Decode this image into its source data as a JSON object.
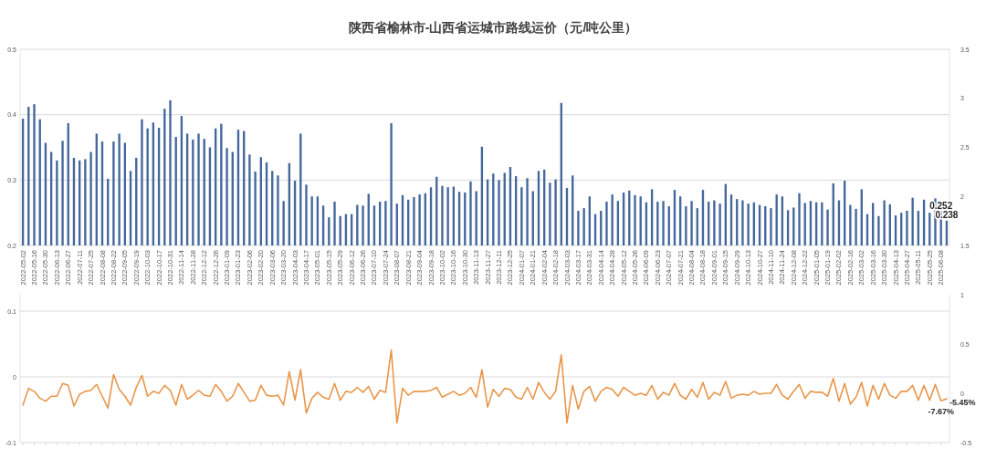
{
  "chart_data": [
    {
      "type": "bar",
      "title": "陕西省榆林市-山西省运城市路线运价（元/吨公里）",
      "categories": [
        "2022-05-02",
        null,
        "2022-05-16",
        null,
        "2022-05-30",
        null,
        "2022-06-13",
        null,
        "2022-06-27",
        null,
        "2022-07-11",
        null,
        "2022-07-25",
        null,
        "2022-08-08",
        null,
        "2022-08-22",
        null,
        "2022-09-05",
        null,
        "2022-09-19",
        null,
        "2022-10-03",
        null,
        "2022-10-17",
        null,
        "2022-10-31",
        null,
        "2022-11-14",
        null,
        "2022-11-28",
        null,
        "2022-12-12",
        null,
        "2022-12-26",
        null,
        "2023-01-09",
        null,
        "2023-01-23",
        null,
        "2023-02-06",
        null,
        "2023-02-20",
        null,
        "2023-03-06",
        null,
        "2023-03-20",
        null,
        "2023-04-03",
        null,
        "2023-04-17",
        null,
        "2023-05-01",
        null,
        "2023-05-15",
        null,
        "2023-05-29",
        null,
        "2023-06-12",
        null,
        "2023-06-26",
        null,
        "2023-07-10",
        null,
        "2023-07-24",
        null,
        "2023-08-07",
        null,
        "2023-08-21",
        null,
        "2023-09-04",
        null,
        "2023-09-18",
        null,
        "2023-10-02",
        null,
        "2023-10-16",
        null,
        "2023-10-30",
        null,
        "2023-11-13",
        null,
        "2023-11-27",
        null,
        "2023-12-11",
        null,
        "2023-12-25",
        null,
        "2024-01-07",
        null,
        "2024-01-21",
        null,
        "2024-02-04",
        null,
        "2024-02-18",
        null,
        "2024-03-03",
        null,
        "2024-03-17",
        null,
        "2024-03-31",
        null,
        "2024-04-14",
        null,
        "2024-04-28",
        null,
        "2024-05-12",
        null,
        "2024-05-26",
        null,
        "2024-06-09",
        null,
        "2024-06-23",
        null,
        "2024-07-07",
        null,
        "2024-07-21",
        null,
        "2024-08-04",
        null,
        "2024-08-18",
        null,
        "2024-09-01",
        null,
        "2024-09-15",
        null,
        "2024-09-29",
        null,
        "2024-10-13",
        null,
        "2024-10-27",
        null,
        "2024-11-10",
        null,
        "2024-11-24",
        null,
        "2024-12-08",
        null,
        "2024-12-22",
        null,
        "2025-01-05",
        null,
        "2025-01-19",
        null,
        "2025-02-02",
        null,
        "2025-02-16",
        null,
        "2025-03-02",
        null,
        "2025-03-16",
        null,
        "2025-03-30",
        null,
        "2025-04-13",
        null,
        "2025-04-27",
        null,
        "2025-05-11",
        null,
        "2025-05-25",
        null,
        "2025-06-08",
        null
      ],
      "series": [
        {
          "color": "#44679c",
          "values": [
            0.394,
            0.412,
            0.416,
            0.393,
            0.357,
            0.343,
            0.33,
            0.36,
            0.387,
            0.334,
            0.33,
            0.332,
            0.343,
            0.371,
            0.359,
            0.302,
            0.359,
            0.371,
            0.357,
            0.314,
            0.334,
            0.393,
            0.379,
            0.388,
            0.38,
            0.409,
            0.422,
            0.366,
            0.398,
            0.371,
            0.362,
            0.371,
            0.363,
            0.35,
            0.379,
            0.386,
            0.349,
            0.343,
            0.377,
            0.375,
            0.339,
            0.313,
            0.335,
            0.327,
            0.314,
            0.307,
            0.268,
            0.326,
            0.299,
            0.371,
            0.293,
            0.275,
            0.275,
            0.261,
            0.243,
            0.267,
            0.245,
            0.248,
            0.248,
            0.262,
            0.261,
            0.279,
            0.261,
            0.267,
            0.268,
            0.387,
            0.264,
            0.277,
            0.27,
            0.274,
            0.278,
            0.28,
            0.289,
            0.305,
            0.291,
            0.289,
            0.29,
            0.282,
            0.281,
            0.298,
            0.283,
            0.351,
            0.301,
            0.31,
            0.3,
            0.311,
            0.32,
            0.306,
            0.289,
            0.303,
            0.283,
            0.314,
            0.316,
            0.296,
            0.301,
            0.418,
            0.288,
            0.307,
            0.253,
            0.257,
            0.275,
            0.248,
            0.253,
            0.267,
            0.278,
            0.268,
            0.281,
            0.284,
            0.277,
            0.275,
            0.266,
            0.286,
            0.267,
            0.268,
            0.26,
            0.285,
            0.275,
            0.26,
            0.268,
            0.257,
            0.285,
            0.267,
            0.269,
            0.264,
            0.294,
            0.278,
            0.271,
            0.269,
            0.264,
            0.266,
            0.262,
            0.26,
            0.257,
            0.278,
            0.275,
            0.254,
            0.258,
            0.28,
            0.265,
            0.268,
            0.266,
            0.266,
            0.255,
            0.295,
            0.269,
            0.299,
            0.262,
            0.256,
            0.286,
            0.248,
            0.265,
            0.245,
            0.269,
            0.263,
            0.246,
            0.25,
            0.253,
            0.273,
            0.253,
            0.27,
            0.25,
            0.272,
            0.252,
            0.238
          ],
          "value_labels": [
            null,
            null,
            null,
            null,
            null,
            null,
            null,
            null,
            null,
            null,
            null,
            null,
            null,
            null,
            null,
            null,
            null,
            null,
            null,
            null,
            null,
            null,
            null,
            null,
            null,
            null,
            null,
            null,
            null,
            null,
            null,
            null,
            null,
            null,
            null,
            null,
            null,
            null,
            null,
            null,
            null,
            null,
            null,
            null,
            null,
            null,
            null,
            null,
            null,
            null,
            null,
            null,
            null,
            null,
            null,
            null,
            null,
            null,
            null,
            null,
            null,
            null,
            null,
            null,
            null,
            null,
            null,
            null,
            null,
            null,
            null,
            null,
            null,
            null,
            null,
            null,
            null,
            null,
            null,
            null,
            null,
            null,
            null,
            null,
            null,
            null,
            null,
            null,
            null,
            null,
            null,
            null,
            null,
            null,
            null,
            null,
            null,
            null,
            null,
            null,
            null,
            null,
            null,
            null,
            null,
            null,
            null,
            null,
            null,
            null,
            null,
            null,
            null,
            null,
            null,
            null,
            null,
            null,
            null,
            null,
            null,
            null,
            null,
            null,
            null,
            null,
            null,
            null,
            null,
            null,
            null,
            null,
            null,
            null,
            null,
            null,
            null,
            null,
            null,
            null,
            null,
            null,
            null,
            null,
            null,
            null,
            null,
            null,
            null,
            null,
            null,
            null,
            null,
            null,
            null,
            null,
            null,
            null,
            null,
            null,
            null,
            null,
            "0.252",
            "0.238"
          ]
        }
      ],
      "ylim": [
        0.2,
        0.5
      ],
      "yticks": [
        0.2,
        0.3,
        0.4,
        0.5
      ],
      "y2lim": [
        1.5,
        3.5
      ],
      "y2ticks": [
        1.5,
        2,
        2.5,
        3,
        3.5
      ],
      "grid": "y"
    },
    {
      "type": "line",
      "tick_labels": "y",
      "categories": [
        "2022-05-02",
        null,
        "2022-05-16",
        null,
        "2022-05-30",
        null,
        "2022-06-13",
        null,
        "2022-06-27",
        null,
        "2022-07-11",
        null,
        "2022-07-25",
        null,
        "2022-08-08",
        null,
        "2022-08-22",
        null,
        "2022-09-05",
        null,
        "2022-09-19",
        null,
        "2022-10-03",
        null,
        "2022-10-17",
        null,
        "2022-10-31",
        null,
        "2022-11-14",
        null,
        "2022-11-28",
        null,
        "2022-12-12",
        null,
        "2022-12-26",
        null,
        "2023-01-09",
        null,
        "2023-01-23",
        null,
        "2023-02-06",
        null,
        "2023-02-20",
        null,
        "2023-03-06",
        null,
        "2023-03-20",
        null,
        "2023-04-03",
        null,
        "2023-04-17",
        null,
        "2023-05-01",
        null,
        "2023-05-15",
        null,
        "2023-05-29",
        null,
        "2023-06-12",
        null,
        "2023-06-26",
        null,
        "2023-07-10",
        null,
        "2023-07-24",
        null,
        "2023-08-07",
        null,
        "2023-08-21",
        null,
        "2023-09-04",
        null,
        "2023-09-18",
        null,
        "2023-10-02",
        null,
        "2023-10-16",
        null,
        "2023-10-30",
        null,
        "2023-11-13",
        null,
        "2023-11-27",
        null,
        "2023-12-11",
        null,
        "2023-12-25",
        null,
        "2024-01-07",
        null,
        "2024-01-21",
        null,
        "2024-02-04",
        null,
        "2024-02-18",
        null,
        "2024-03-03",
        null,
        "2024-03-17",
        null,
        "2024-03-31",
        null,
        "2024-04-14",
        null,
        "2024-04-28",
        null,
        "2024-05-12",
        null,
        "2024-05-26",
        null,
        "2024-06-09",
        null,
        "2024-06-23",
        null,
        "2024-07-07",
        null,
        "2024-07-21",
        null,
        "2024-08-04",
        null,
        "2024-08-18",
        null,
        "2024-09-01",
        null,
        "2024-09-15",
        null,
        "2024-09-29",
        null,
        "2024-10-13",
        null,
        "2024-10-27",
        null,
        "2024-11-10",
        null,
        "2024-11-24",
        null,
        "2024-12-08",
        null,
        "2024-12-22",
        null,
        "2025-01-05",
        null,
        "2025-01-19",
        null,
        "2025-02-02",
        null,
        "2025-02-16",
        null,
        "2025-03-02",
        null,
        "2025-03-16",
        null,
        "2025-03-30",
        null,
        "2025-04-13",
        null,
        "2025-04-27",
        null,
        "2025-05-11",
        null,
        "2025-05-25",
        null,
        "2025-06-08",
        null
      ],
      "series": [
        {
          "color": "#e8964a",
          "axis": "y2",
          "values": [
            -0.12,
            0.05,
            0.02,
            -0.05,
            -0.08,
            -0.03,
            -0.03,
            0.1,
            0.08,
            -0.13,
            -0.01,
            0.02,
            0.03,
            0.09,
            -0.03,
            -0.15,
            0.19,
            0.04,
            -0.03,
            -0.12,
            0.06,
            0.18,
            -0.03,
            0.02,
            0.0,
            0.08,
            0.03,
            -0.12,
            0.09,
            -0.06,
            -0.02,
            0.03,
            -0.02,
            -0.03,
            0.09,
            0.02,
            -0.08,
            -0.03,
            0.1,
            0.01,
            -0.08,
            -0.07,
            0.08,
            -0.02,
            -0.03,
            -0.02,
            -0.12,
            0.22,
            -0.07,
            0.24,
            -0.2,
            -0.05,
            0.01,
            -0.04,
            -0.06,
            0.1,
            -0.07,
            0.02,
            0.01,
            0.06,
            0.01,
            0.07,
            -0.06,
            0.03,
            0.01,
            0.44,
            -0.3,
            0.05,
            -0.02,
            0.02,
            0.02,
            0.02,
            0.03,
            0.06,
            -0.04,
            -0.01,
            0.02,
            -0.02,
            0.0,
            0.06,
            -0.04,
            0.24,
            -0.14,
            0.04,
            -0.03,
            0.05,
            0.04,
            -0.04,
            -0.06,
            0.06,
            -0.06,
            0.11,
            0.01,
            -0.06,
            0.02,
            0.39,
            -0.3,
            0.08,
            -0.16,
            0.02,
            0.07,
            -0.08,
            0.02,
            0.06,
            0.04,
            -0.03,
            0.06,
            0.02,
            -0.02,
            0.0,
            -0.02,
            0.08,
            -0.06,
            0.01,
            -0.02,
            0.1,
            -0.02,
            -0.06,
            0.04,
            -0.04,
            0.11,
            -0.06,
            0.01,
            -0.02,
            0.12,
            -0.05,
            -0.02,
            -0.01,
            -0.02,
            0.02,
            -0.01,
            0.0,
            0.0,
            0.09,
            -0.02,
            -0.06,
            0.02,
            0.09,
            -0.05,
            0.02,
            0.01,
            0.01,
            -0.03,
            0.15,
            -0.08,
            0.1,
            -0.11,
            -0.04,
            0.11,
            -0.13,
            0.08,
            -0.06,
            0.1,
            -0.02,
            -0.05,
            0.02,
            0.02,
            0.08,
            -0.07,
            0.08,
            -0.07,
            0.09,
            -0.0767,
            -0.0545
          ],
          "value_labels": [
            null,
            null,
            null,
            null,
            null,
            null,
            null,
            null,
            null,
            null,
            null,
            null,
            null,
            null,
            null,
            null,
            null,
            null,
            null,
            null,
            null,
            null,
            null,
            null,
            null,
            null,
            null,
            null,
            null,
            null,
            null,
            null,
            null,
            null,
            null,
            null,
            null,
            null,
            null,
            null,
            null,
            null,
            null,
            null,
            null,
            null,
            null,
            null,
            null,
            null,
            null,
            null,
            null,
            null,
            null,
            null,
            null,
            null,
            null,
            null,
            null,
            null,
            null,
            null,
            null,
            null,
            null,
            null,
            null,
            null,
            null,
            null,
            null,
            null,
            null,
            null,
            null,
            null,
            null,
            null,
            null,
            null,
            null,
            null,
            null,
            null,
            null,
            null,
            null,
            null,
            null,
            null,
            null,
            null,
            null,
            null,
            null,
            null,
            null,
            null,
            null,
            null,
            null,
            null,
            null,
            null,
            null,
            null,
            null,
            null,
            null,
            null,
            null,
            null,
            null,
            null,
            null,
            null,
            null,
            null,
            null,
            null,
            null,
            null,
            null,
            null,
            null,
            null,
            null,
            null,
            null,
            null,
            null,
            null,
            null,
            null,
            null,
            null,
            null,
            null,
            null,
            null,
            null,
            null,
            null,
            null,
            null,
            null,
            null,
            null,
            null,
            null,
            null,
            null,
            null,
            null,
            null,
            null,
            null,
            null,
            null,
            null,
            "-7.67%",
            "-5.45%"
          ]
        }
      ],
      "ylim": [
        -0.1,
        0.125
      ],
      "yticks": [
        -0.1,
        0,
        0.1
      ],
      "y2lim": [
        -0.5,
        1
      ],
      "y2ticks": [
        -0.5,
        0,
        0.5,
        1
      ],
      "grid": "y"
    }
  ]
}
